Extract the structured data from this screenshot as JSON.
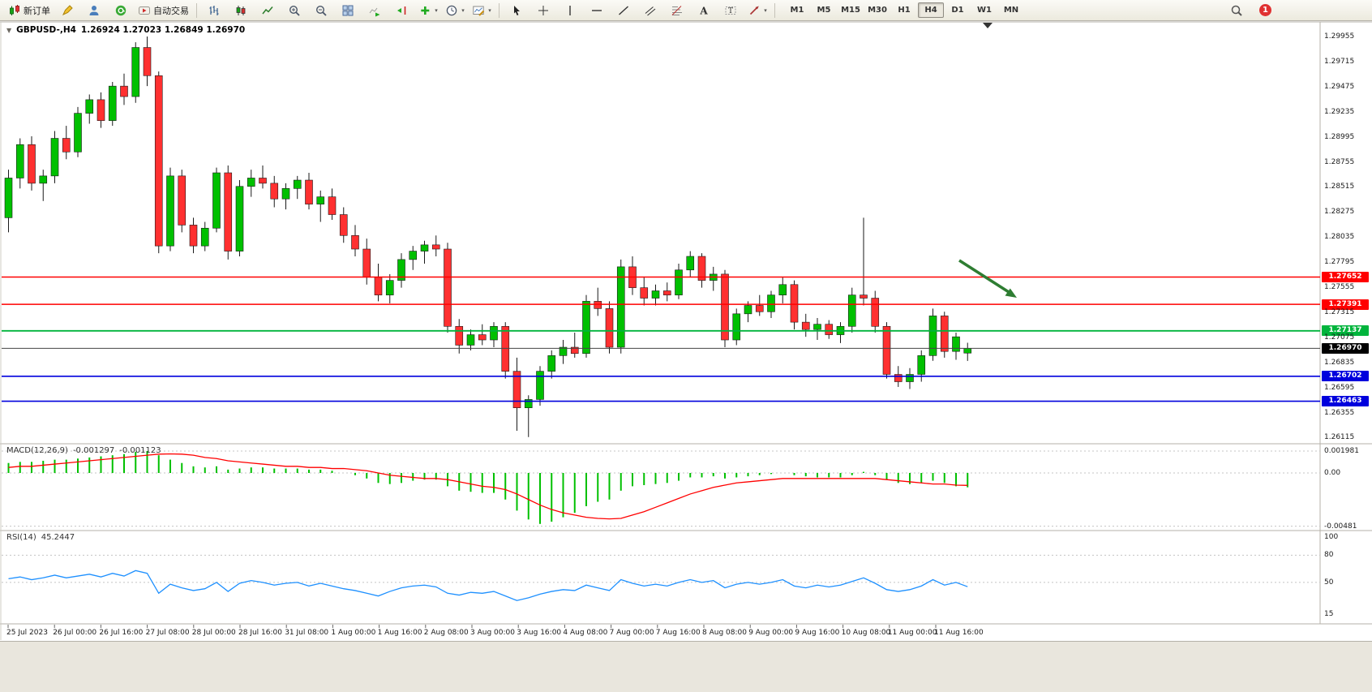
{
  "toolbar": {
    "new_order_label": "新订单",
    "autotrade_label": "自动交易",
    "timeframes": [
      "M1",
      "M5",
      "M15",
      "M30",
      "H1",
      "H4",
      "D1",
      "W1",
      "MN"
    ],
    "active_timeframe": "H4",
    "notification_count": "1"
  },
  "chart": {
    "symbol": "GBPUSD-,H4",
    "ohlc_text": "1.26924 1.27023 1.26849 1.26970"
  },
  "price_axis": {
    "labels": [
      "1.29955",
      "1.29715",
      "1.29475",
      "1.29235",
      "1.28995",
      "1.28755",
      "1.28515",
      "1.28275",
      "1.28035",
      "1.27795",
      "1.27555",
      "1.27315",
      "1.27075",
      "1.26835",
      "1.26595",
      "1.26355",
      "1.26115"
    ]
  },
  "hlines": [
    {
      "name": "resistance-1",
      "price": "1.27652",
      "value": 1.27652,
      "color": "#ff0000",
      "width": 1.4
    },
    {
      "name": "resistance-2",
      "price": "1.27391",
      "value": 1.27391,
      "color": "#ff0000",
      "width": 1.4
    },
    {
      "name": "support-green",
      "price": "1.27137",
      "value": 1.27137,
      "color": "#00b43c",
      "width": 1.8
    },
    {
      "name": "current-price",
      "price": "1.26970",
      "value": 1.2697,
      "color": "#444444",
      "width": 1,
      "badge": "#000000"
    },
    {
      "name": "support-blue-1",
      "price": "1.26702",
      "value": 1.26702,
      "color": "#0000dd",
      "width": 1.6
    },
    {
      "name": "support-blue-2",
      "price": "1.26463",
      "value": 1.26463,
      "color": "#0000dd",
      "width": 1.6
    }
  ],
  "macd": {
    "label": "MACD(12,26,9)",
    "value_main": "-0.001297",
    "value_signal": "-0.001123",
    "axis": [
      "0.001981",
      "0.00",
      "-0.00481"
    ]
  },
  "rsi": {
    "label": "RSI(14)",
    "value": "45.2447",
    "axis": [
      "100",
      "80",
      "50",
      "15"
    ]
  },
  "dates": [
    "25 Jul 2023",
    "26 Jul 00:00",
    "26 Jul 16:00",
    "27 Jul 08:00",
    "28 Jul 00:00",
    "28 Jul 16:00",
    "31 Jul 08:00",
    "1 Aug 00:00",
    "1 Aug 16:00",
    "2 Aug 08:00",
    "3 Aug 00:00",
    "3 Aug 16:00",
    "4 Aug 08:00",
    "7 Aug 00:00",
    "7 Aug 16:00",
    "8 Aug 08:00",
    "9 Aug 00:00",
    "9 Aug 16:00",
    "10 Aug 08:00",
    "11 Aug 00:00",
    "11 Aug 16:00"
  ],
  "colors": {
    "bull": "#00c000",
    "bear": "#ff3030",
    "macd_hist": "#00c000",
    "macd_signal": "#ff0000",
    "rsi_line": "#1e90ff",
    "resistance": "#ff0000",
    "support_blue": "#0000dd",
    "support_green": "#00b43c",
    "current_price_badge": "#000000",
    "arrow": "#2e7d32"
  },
  "chart_data": [
    {
      "type": "candlestick",
      "title": "GBPUSD- H4",
      "ylim": [
        1.26,
        1.3006
      ],
      "ohlc": [
        [
          1.2822,
          1.2868,
          1.2808,
          1.286
        ],
        [
          1.286,
          1.2898,
          1.285,
          1.2892
        ],
        [
          1.2892,
          1.29,
          1.2848,
          1.2855
        ],
        [
          1.2855,
          1.2868,
          1.2838,
          1.2862
        ],
        [
          1.2862,
          1.2905,
          1.2855,
          1.2898
        ],
        [
          1.2898,
          1.291,
          1.2878,
          1.2885
        ],
        [
          1.2885,
          1.2928,
          1.288,
          1.2922
        ],
        [
          1.2922,
          1.294,
          1.2912,
          1.2935
        ],
        [
          1.2935,
          1.2942,
          1.2908,
          1.2915
        ],
        [
          1.2915,
          1.2952,
          1.291,
          1.2948
        ],
        [
          1.2948,
          1.296,
          1.293,
          1.2938
        ],
        [
          1.2938,
          1.299,
          1.2932,
          1.2985
        ],
        [
          1.2985,
          1.29955,
          1.2948,
          1.2958
        ],
        [
          1.2958,
          1.2962,
          1.2788,
          1.2795
        ],
        [
          1.2795,
          1.287,
          1.279,
          1.2862
        ],
        [
          1.2862,
          1.2868,
          1.2808,
          1.2815
        ],
        [
          1.2815,
          1.2822,
          1.2788,
          1.2795
        ],
        [
          1.2795,
          1.2818,
          1.279,
          1.2812
        ],
        [
          1.2812,
          1.287,
          1.2808,
          1.2865
        ],
        [
          1.2865,
          1.2872,
          1.2782,
          1.279
        ],
        [
          1.279,
          1.2858,
          1.2785,
          1.2852
        ],
        [
          1.2852,
          1.2868,
          1.2842,
          1.286
        ],
        [
          1.286,
          1.2872,
          1.285,
          1.2855
        ],
        [
          1.2855,
          1.2862,
          1.2832,
          1.284
        ],
        [
          1.284,
          1.2855,
          1.283,
          1.285
        ],
        [
          1.285,
          1.2862,
          1.284,
          1.2858
        ],
        [
          1.2858,
          1.2865,
          1.283,
          1.2835
        ],
        [
          1.2835,
          1.2848,
          1.2818,
          1.2842
        ],
        [
          1.2842,
          1.285,
          1.282,
          1.2825
        ],
        [
          1.2825,
          1.2832,
          1.2798,
          1.2805
        ],
        [
          1.2805,
          1.2815,
          1.2785,
          1.2792
        ],
        [
          1.2792,
          1.2802,
          1.2758,
          1.2765
        ],
        [
          1.2765,
          1.2778,
          1.2742,
          1.2748
        ],
        [
          1.2748,
          1.2768,
          1.274,
          1.2762
        ],
        [
          1.2762,
          1.2788,
          1.2755,
          1.2782
        ],
        [
          1.2782,
          1.2795,
          1.2772,
          1.279
        ],
        [
          1.279,
          1.28,
          1.2778,
          1.2796
        ],
        [
          1.2796,
          1.2805,
          1.2785,
          1.2792
        ],
        [
          1.2792,
          1.2798,
          1.2712,
          1.2718
        ],
        [
          1.2718,
          1.2725,
          1.2692,
          1.27
        ],
        [
          1.27,
          1.2715,
          1.2695,
          1.271
        ],
        [
          1.271,
          1.272,
          1.27,
          1.2705
        ],
        [
          1.2705,
          1.2722,
          1.2698,
          1.2718
        ],
        [
          1.2718,
          1.2722,
          1.2668,
          1.2675
        ],
        [
          1.2675,
          1.2688,
          1.2618,
          1.264
        ],
        [
          1.264,
          1.2652,
          1.2612,
          1.2648
        ],
        [
          1.2648,
          1.268,
          1.2642,
          1.2675
        ],
        [
          1.2675,
          1.2695,
          1.2668,
          1.269
        ],
        [
          1.269,
          1.2705,
          1.2682,
          1.2698
        ],
        [
          1.2698,
          1.2712,
          1.2688,
          1.2692
        ],
        [
          1.2692,
          1.2748,
          1.2688,
          1.2742
        ],
        [
          1.2742,
          1.2755,
          1.2728,
          1.2735
        ],
        [
          1.2735,
          1.2742,
          1.2692,
          1.2698
        ],
        [
          1.2698,
          1.2782,
          1.2692,
          1.2775
        ],
        [
          1.2775,
          1.2785,
          1.2748,
          1.2755
        ],
        [
          1.2755,
          1.2765,
          1.2738,
          1.2745
        ],
        [
          1.2745,
          1.2758,
          1.2738,
          1.2752
        ],
        [
          1.2752,
          1.276,
          1.2742,
          1.2748
        ],
        [
          1.2748,
          1.2778,
          1.2744,
          1.2772
        ],
        [
          1.2772,
          1.279,
          1.2765,
          1.2785
        ],
        [
          1.2785,
          1.2788,
          1.2755,
          1.2762
        ],
        [
          1.2762,
          1.2775,
          1.2752,
          1.2768
        ],
        [
          1.2768,
          1.2772,
          1.2698,
          1.2705
        ],
        [
          1.2705,
          1.2735,
          1.27,
          1.273
        ],
        [
          1.273,
          1.2742,
          1.2722,
          1.2738
        ],
        [
          1.2738,
          1.2748,
          1.2728,
          1.2732
        ],
        [
          1.2732,
          1.2752,
          1.2726,
          1.2748
        ],
        [
          1.2748,
          1.2765,
          1.274,
          1.2758
        ],
        [
          1.2758,
          1.2762,
          1.2715,
          1.2722
        ],
        [
          1.2722,
          1.273,
          1.2708,
          1.2715
        ],
        [
          1.2715,
          1.2726,
          1.2705,
          1.272
        ],
        [
          1.272,
          1.2724,
          1.2706,
          1.271
        ],
        [
          1.271,
          1.2722,
          1.2702,
          1.2718
        ],
        [
          1.2718,
          1.2755,
          1.2712,
          1.2748
        ],
        [
          1.2748,
          1.2822,
          1.2738,
          1.2745
        ],
        [
          1.2745,
          1.2752,
          1.2712,
          1.2718
        ],
        [
          1.2718,
          1.2722,
          1.2668,
          1.2672
        ],
        [
          1.2672,
          1.268,
          1.266,
          1.2665
        ],
        [
          1.2665,
          1.2678,
          1.2658,
          1.2672
        ],
        [
          1.2672,
          1.2695,
          1.2665,
          1.269
        ],
        [
          1.269,
          1.2735,
          1.2685,
          1.2728
        ],
        [
          1.2728,
          1.2732,
          1.2688,
          1.2694
        ],
        [
          1.2694,
          1.2712,
          1.2686,
          1.2708
        ],
        [
          1.26924,
          1.27023,
          1.26849,
          1.2697
        ]
      ]
    },
    {
      "type": "bar",
      "name": "MACD(12,26,9)",
      "ylim": [
        -0.00481,
        0.001981
      ],
      "histogram": [
        0.0009,
        0.001,
        0.001,
        0.0011,
        0.0012,
        0.0012,
        0.0013,
        0.0014,
        0.0015,
        0.0016,
        0.0017,
        0.0019,
        0.00198,
        0.0016,
        0.0012,
        0.0009,
        0.0006,
        0.0005,
        0.0006,
        0.0003,
        0.0004,
        0.0005,
        0.0005,
        0.0004,
        0.0004,
        0.0004,
        0.0003,
        0.0003,
        0.0002,
        0.0,
        -0.0002,
        -0.0005,
        -0.0009,
        -0.001,
        -0.0009,
        -0.0007,
        -0.0006,
        -0.0006,
        -0.0012,
        -0.0016,
        -0.0017,
        -0.0018,
        -0.0018,
        -0.0024,
        -0.0034,
        -0.0042,
        -0.0046,
        -0.0044,
        -0.004,
        -0.0036,
        -0.003,
        -0.0026,
        -0.0024,
        -0.0016,
        -0.0012,
        -0.0011,
        -0.001,
        -0.0009,
        -0.0007,
        -0.0004,
        -0.0004,
        -0.0003,
        -0.0005,
        -0.0004,
        -0.0003,
        -0.0002,
        -0.0001,
        0.0,
        -0.0002,
        -0.0003,
        -0.0004,
        -0.0004,
        -0.0004,
        -0.0002,
        0.0001,
        -0.0002,
        -0.0006,
        -0.0009,
        -0.001,
        -0.0009,
        -0.0007,
        -0.0009,
        -0.0012,
        -0.001297
      ],
      "signal": [
        0.0005,
        0.0006,
        0.0006,
        0.0007,
        0.0008,
        0.0009,
        0.001,
        0.0011,
        0.0012,
        0.0013,
        0.0014,
        0.0015,
        0.0016,
        0.0017,
        0.00172,
        0.0017,
        0.0016,
        0.0014,
        0.0013,
        0.0011,
        0.001,
        0.0009,
        0.0008,
        0.0007,
        0.0006,
        0.0006,
        0.0005,
        0.0005,
        0.0004,
        0.0004,
        0.0003,
        0.0002,
        0.0,
        -0.0002,
        -0.0003,
        -0.0004,
        -0.0005,
        -0.0005,
        -0.0006,
        -0.0008,
        -0.001,
        -0.0012,
        -0.0013,
        -0.0015,
        -0.0019,
        -0.0024,
        -0.0029,
        -0.0033,
        -0.0036,
        -0.0038,
        -0.004,
        -0.0041,
        -0.00415,
        -0.0041,
        -0.0038,
        -0.0035,
        -0.0031,
        -0.0027,
        -0.0023,
        -0.0019,
        -0.0016,
        -0.0013,
        -0.0011,
        -0.0009,
        -0.0008,
        -0.0007,
        -0.0006,
        -0.0005,
        -0.0005,
        -0.0005,
        -0.0005,
        -0.0005,
        -0.0005,
        -0.0005,
        -0.0005,
        -0.0005,
        -0.0006,
        -0.0007,
        -0.0008,
        -0.0009,
        -0.001,
        -0.001,
        -0.0011,
        -0.001123
      ],
      "last_values": [
        -0.001297,
        -0.001123
      ]
    },
    {
      "type": "line",
      "name": "RSI(14)",
      "ylim": [
        0,
        100
      ],
      "levels": [
        80,
        50
      ],
      "last_value": 45.2447,
      "values": [
        54,
        56,
        53,
        55,
        58,
        55,
        57,
        59,
        56,
        60,
        57,
        63,
        60,
        38,
        48,
        44,
        41,
        43,
        50,
        40,
        49,
        52,
        50,
        47,
        49,
        50,
        46,
        49,
        46,
        43,
        41,
        38,
        35,
        40,
        44,
        46,
        47,
        45,
        38,
        36,
        39,
        38,
        40,
        35,
        30,
        33,
        37,
        40,
        42,
        41,
        47,
        44,
        41,
        53,
        49,
        46,
        48,
        46,
        50,
        53,
        50,
        52,
        44,
        48,
        50,
        48,
        50,
        53,
        46,
        44,
        47,
        45,
        47,
        51,
        55,
        49,
        42,
        40,
        42,
        46,
        53,
        47,
        50,
        45.2447
      ]
    }
  ]
}
